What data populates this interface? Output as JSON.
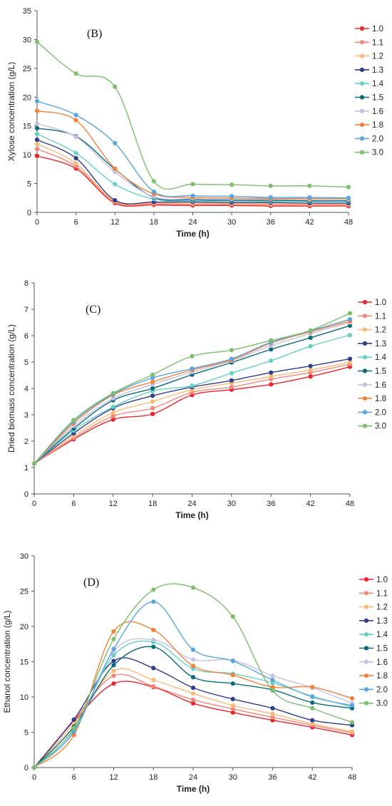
{
  "chart_data": [
    {
      "type": "line",
      "panel_label": "(B)",
      "xlabel": "Time (h)",
      "ylabel": "Xylose concentration (g/L)",
      "x": [
        0,
        6,
        12,
        18,
        24,
        30,
        36,
        42,
        48
      ],
      "xticks": [
        0,
        6,
        12,
        18,
        24,
        30,
        36,
        42,
        48
      ],
      "ylim": [
        0,
        35
      ],
      "yticks": [
        0,
        5,
        10,
        15,
        20,
        25,
        30,
        35
      ],
      "legend_position": "right",
      "series": [
        {
          "name": "1.0",
          "color": "#e8262b",
          "values": [
            9.8,
            7.6,
            1.6,
            1.3,
            1.2,
            1.2,
            1.1,
            1.1,
            1.1
          ]
        },
        {
          "name": "1.1",
          "color": "#f4877b",
          "values": [
            11.0,
            8.0,
            1.8,
            1.5,
            1.4,
            1.4,
            1.3,
            1.3,
            1.3
          ]
        },
        {
          "name": "1.2",
          "color": "#fdb978",
          "values": [
            11.9,
            8.5,
            1.9,
            1.7,
            1.6,
            1.5,
            1.5,
            1.4,
            1.4
          ]
        },
        {
          "name": "1.3",
          "color": "#2f3d8c",
          "values": [
            12.6,
            9.4,
            2.1,
            1.8,
            1.8,
            1.7,
            1.7,
            1.6,
            1.6
          ]
        },
        {
          "name": "1.4",
          "color": "#66d1c6",
          "values": [
            13.6,
            10.3,
            4.9,
            2.3,
            2.0,
            2.0,
            1.9,
            1.9,
            1.9
          ]
        },
        {
          "name": "1.5",
          "color": "#0b6b78",
          "values": [
            14.6,
            13.2,
            7.5,
            2.6,
            2.2,
            2.1,
            2.1,
            2.0,
            2.0
          ]
        },
        {
          "name": "1.6",
          "color": "#c6bfe6",
          "values": [
            15.4,
            13.1,
            7.0,
            2.7,
            2.4,
            2.3,
            2.3,
            2.2,
            2.2
          ]
        },
        {
          "name": "1.8",
          "color": "#f5823a",
          "values": [
            17.6,
            16.0,
            7.6,
            3.2,
            2.6,
            2.5,
            2.4,
            2.4,
            2.4
          ]
        },
        {
          "name": "2.0",
          "color": "#5aa6e0",
          "values": [
            19.3,
            16.9,
            12.0,
            3.6,
            2.9,
            2.8,
            2.6,
            2.6,
            2.5
          ]
        },
        {
          "name": "3.0",
          "color": "#7dbf6c",
          "values": [
            29.6,
            24.1,
            21.8,
            5.4,
            4.9,
            4.8,
            4.6,
            4.6,
            4.4
          ]
        }
      ]
    },
    {
      "type": "line",
      "panel_label": "(C)",
      "xlabel": "Time (h)",
      "ylabel": "Dried biomass concentration (g/L)",
      "x": [
        0,
        6,
        12,
        18,
        24,
        30,
        36,
        42,
        48
      ],
      "xticks": [
        0,
        6,
        12,
        18,
        24,
        30,
        36,
        42,
        48
      ],
      "ylim": [
        0,
        8
      ],
      "yticks": [
        0,
        1,
        2,
        3,
        4,
        5,
        6,
        7,
        8
      ],
      "legend_position": "right",
      "series": [
        {
          "name": "1.0",
          "color": "#e8262b",
          "values": [
            1.15,
            2.07,
            2.82,
            3.03,
            3.75,
            3.95,
            4.15,
            4.45,
            4.82
          ]
        },
        {
          "name": "1.1",
          "color": "#f4877b",
          "values": [
            1.15,
            2.12,
            2.95,
            3.25,
            3.85,
            4.05,
            4.35,
            4.6,
            4.92
          ]
        },
        {
          "name": "1.2",
          "color": "#fdb978",
          "values": [
            1.15,
            2.2,
            3.08,
            3.5,
            3.95,
            4.2,
            4.45,
            4.7,
            5.0
          ]
        },
        {
          "name": "1.3",
          "color": "#2f3d8c",
          "values": [
            1.15,
            2.3,
            3.25,
            3.72,
            4.05,
            4.3,
            4.6,
            4.85,
            5.12
          ]
        },
        {
          "name": "1.4",
          "color": "#66d1c6",
          "values": [
            1.15,
            2.4,
            3.3,
            3.9,
            4.1,
            4.58,
            5.05,
            5.6,
            6.02
          ]
        },
        {
          "name": "1.5",
          "color": "#0b6b78",
          "values": [
            1.15,
            2.48,
            3.55,
            4.0,
            4.52,
            4.98,
            5.48,
            5.92,
            6.38
          ]
        },
        {
          "name": "1.6",
          "color": "#c6bfe6",
          "values": [
            1.15,
            2.58,
            3.62,
            4.15,
            4.62,
            5.05,
            5.62,
            6.08,
            6.5
          ]
        },
        {
          "name": "1.8",
          "color": "#f5823a",
          "values": [
            1.15,
            2.68,
            3.75,
            4.25,
            4.7,
            5.08,
            5.72,
            6.15,
            6.55
          ]
        },
        {
          "name": "2.0",
          "color": "#5aa6e0",
          "values": [
            1.15,
            2.75,
            3.78,
            4.4,
            4.75,
            5.12,
            5.75,
            6.18,
            6.62
          ]
        },
        {
          "name": "3.0",
          "color": "#7dbf6c",
          "values": [
            1.15,
            2.8,
            3.82,
            4.52,
            5.22,
            5.45,
            5.82,
            6.2,
            6.85
          ]
        }
      ]
    },
    {
      "type": "line",
      "panel_label": "(D)",
      "xlabel": "Time (h)",
      "ylabel": "Ethanol concentration (g/L)",
      "x": [
        0,
        6,
        12,
        18,
        24,
        30,
        36,
        42,
        48
      ],
      "xticks": [
        0,
        6,
        12,
        18,
        24,
        30,
        36,
        42,
        48
      ],
      "ylim": [
        0,
        30
      ],
      "yticks": [
        0,
        5,
        10,
        15,
        20,
        25,
        30
      ],
      "legend_position": "right",
      "series": [
        {
          "name": "1.0",
          "color": "#e8262b",
          "values": [
            0,
            6.6,
            11.9,
            11.4,
            9.1,
            7.8,
            6.7,
            5.7,
            4.6
          ]
        },
        {
          "name": "1.1",
          "color": "#f4877b",
          "values": [
            0,
            6.8,
            13.0,
            11.5,
            9.6,
            8.3,
            7.1,
            6.0,
            4.9
          ]
        },
        {
          "name": "1.2",
          "color": "#fdb978",
          "values": [
            0,
            6.2,
            13.7,
            12.4,
            10.5,
            8.8,
            7.6,
            6.2,
            5.1
          ]
        },
        {
          "name": "1.3",
          "color": "#2f3d8c",
          "values": [
            0,
            6.8,
            15.1,
            14.1,
            11.3,
            9.7,
            8.4,
            6.7,
            6.0
          ]
        },
        {
          "name": "1.4",
          "color": "#66d1c6",
          "values": [
            0,
            5.4,
            15.9,
            17.8,
            14.0,
            13.3,
            12.0,
            10.1,
            8.6
          ]
        },
        {
          "name": "1.5",
          "color": "#0b6b78",
          "values": [
            0,
            5.8,
            14.5,
            17.1,
            12.8,
            11.9,
            11.0,
            9.2,
            8.4
          ]
        },
        {
          "name": "1.6",
          "color": "#c6bfe6",
          "values": [
            0,
            5.0,
            16.5,
            18.1,
            15.3,
            15.2,
            13.0,
            11.3,
            9.1
          ]
        },
        {
          "name": "1.8",
          "color": "#f5823a",
          "values": [
            0,
            4.6,
            19.3,
            19.5,
            14.4,
            13.1,
            11.4,
            11.4,
            9.8
          ]
        },
        {
          "name": "2.0",
          "color": "#5aa6e0",
          "values": [
            0,
            5.1,
            16.8,
            23.5,
            16.7,
            15.1,
            12.4,
            10.0,
            8.8
          ]
        },
        {
          "name": "3.0",
          "color": "#7dbf6c",
          "values": [
            0,
            5.6,
            18.2,
            25.2,
            25.5,
            21.4,
            10.9,
            8.4,
            6.4
          ]
        }
      ]
    }
  ]
}
